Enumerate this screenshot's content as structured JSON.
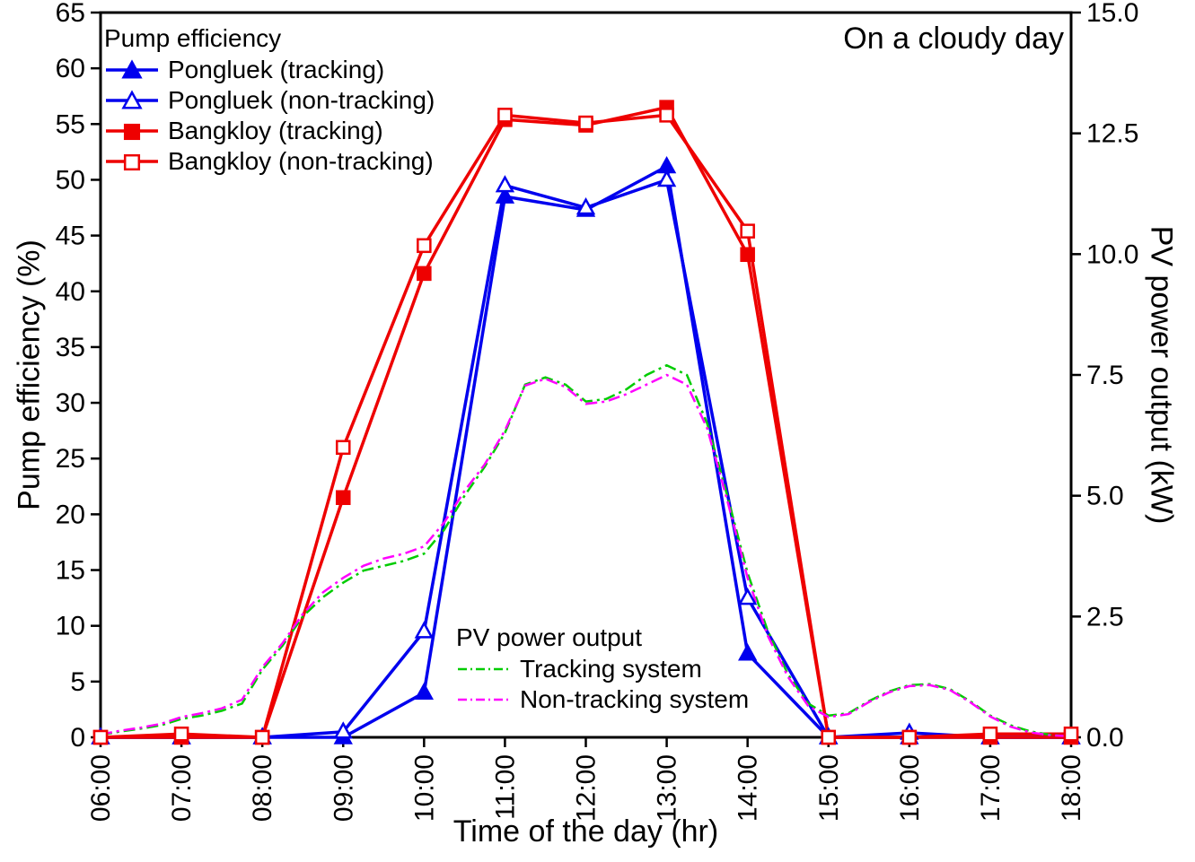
{
  "chart_data": {
    "type": "line",
    "title": "On a cloudy day",
    "xlabel": "Time of the day (hr)",
    "ylabel_left": "Pump efficiency (%)",
    "ylabel_right": "PV power output (kW)",
    "x_range_hours": [
      6,
      18
    ],
    "x_tick_hours": [
      6,
      7,
      8,
      9,
      10,
      11,
      12,
      13,
      14,
      15,
      16,
      17,
      18
    ],
    "x_tick_labels": [
      "06:00",
      "07:00",
      "08:00",
      "09:00",
      "10:00",
      "11:00",
      "12:00",
      "13:00",
      "14:00",
      "15:00",
      "16:00",
      "17:00",
      "18:00"
    ],
    "y_left_range": [
      0,
      65
    ],
    "y_left_ticks": [
      0,
      5,
      10,
      15,
      20,
      25,
      30,
      35,
      40,
      45,
      50,
      55,
      60,
      65
    ],
    "y_right_range": [
      0,
      15
    ],
    "y_right_ticks": [
      0,
      2.5,
      5,
      7.5,
      10,
      12.5,
      15
    ],
    "y_right_tick_labels": [
      "0.0",
      "2.5",
      "5.0",
      "7.5",
      "10.0",
      "12.5",
      "15.0"
    ],
    "legends": {
      "pump_title": "Pump efficiency",
      "pv_title": "PV power output"
    },
    "pump_series": [
      {
        "name": "Pongluek (tracking)",
        "color": "#0000EE",
        "marker": "triangle",
        "fill": "filled",
        "hours": [
          6,
          7,
          8,
          9,
          10,
          11,
          12,
          13,
          14,
          15,
          16,
          17,
          18
        ],
        "values": [
          0,
          0,
          0,
          0,
          4,
          48.5,
          47.3,
          51.2,
          7.5,
          0,
          0,
          0,
          0
        ]
      },
      {
        "name": "Pongluek (non-tracking)",
        "color": "#0000EE",
        "marker": "triangle",
        "fill": "open",
        "hours": [
          6,
          7,
          8,
          9,
          10,
          11,
          12,
          13,
          14,
          15,
          16,
          17,
          18
        ],
        "values": [
          0,
          0,
          0,
          0.5,
          9.5,
          49.5,
          47.5,
          50,
          12.5,
          0,
          0.4,
          0,
          0
        ]
      },
      {
        "name": "Bangkloy (tracking)",
        "color": "#EE0000",
        "marker": "square",
        "fill": "filled",
        "hours": [
          6,
          7,
          8,
          9,
          10,
          11,
          12,
          13,
          14,
          15,
          16,
          17,
          18
        ],
        "values": [
          0,
          0,
          0,
          21.5,
          41.6,
          55.4,
          54.9,
          56.5,
          43.3,
          0,
          0,
          0,
          0
        ]
      },
      {
        "name": "Bangkloy (non-tracking)",
        "color": "#EE0000",
        "marker": "square",
        "fill": "open",
        "hours": [
          6,
          7,
          8,
          9,
          10,
          11,
          12,
          13,
          14,
          15,
          16,
          17,
          18
        ],
        "values": [
          0,
          0.3,
          0,
          26,
          44.1,
          55.8,
          55.1,
          55.8,
          45.4,
          0,
          0,
          0.3,
          0.3
        ]
      }
    ],
    "pv_series": [
      {
        "name": "Tracking system",
        "color": "#00CC00",
        "style": "dash-dot",
        "hours": [
          6,
          6.25,
          6.5,
          6.75,
          7,
          7.25,
          7.5,
          7.75,
          8,
          8.25,
          8.5,
          8.75,
          9,
          9.25,
          9.5,
          9.75,
          10,
          10.25,
          10.5,
          10.75,
          11,
          11.25,
          11.5,
          11.75,
          12,
          12.25,
          12.5,
          12.75,
          13,
          13.25,
          13.5,
          13.75,
          14,
          14.25,
          14.5,
          14.75,
          15,
          15.25,
          15.5,
          15.75,
          16,
          16.25,
          16.5,
          16.75,
          17,
          17.25,
          17.5,
          17.75,
          18
        ],
        "values": [
          0.05,
          0.12,
          0.18,
          0.25,
          0.38,
          0.45,
          0.55,
          0.7,
          1.4,
          1.9,
          2.5,
          2.9,
          3.2,
          3.45,
          3.55,
          3.65,
          3.8,
          4.3,
          5.0,
          5.6,
          6.3,
          7.3,
          7.45,
          7.3,
          6.95,
          7.0,
          7.2,
          7.5,
          7.7,
          7.5,
          6.5,
          5.0,
          3.4,
          2.2,
          1.3,
          0.7,
          0.45,
          0.5,
          0.75,
          0.95,
          1.08,
          1.1,
          1.0,
          0.75,
          0.45,
          0.25,
          0.12,
          0.05,
          0.02
        ]
      },
      {
        "name": "Non-tracking system",
        "color": "#FF00FF",
        "style": "dash-dot",
        "hours": [
          6,
          6.25,
          6.5,
          6.75,
          7,
          7.25,
          7.5,
          7.75,
          8,
          8.25,
          8.5,
          8.75,
          9,
          9.25,
          9.5,
          9.75,
          10,
          10.25,
          10.5,
          10.75,
          11,
          11.25,
          11.5,
          11.75,
          12,
          12.25,
          12.5,
          12.75,
          13,
          13.25,
          13.5,
          13.75,
          14,
          14.25,
          14.5,
          14.75,
          15,
          15.25,
          15.5,
          15.75,
          16,
          16.25,
          16.5,
          16.75,
          17,
          17.25,
          17.5,
          17.75,
          18
        ],
        "values": [
          0.06,
          0.14,
          0.2,
          0.28,
          0.42,
          0.5,
          0.6,
          0.78,
          1.45,
          1.95,
          2.55,
          3.0,
          3.3,
          3.55,
          3.7,
          3.8,
          3.95,
          4.45,
          5.1,
          5.65,
          6.35,
          7.28,
          7.42,
          7.25,
          6.9,
          6.95,
          7.1,
          7.3,
          7.5,
          7.3,
          6.4,
          4.9,
          3.3,
          2.1,
          1.25,
          0.65,
          0.42,
          0.48,
          0.73,
          0.93,
          1.06,
          1.08,
          0.98,
          0.73,
          0.43,
          0.22,
          0.1,
          0.04,
          0.02
        ]
      }
    ]
  }
}
